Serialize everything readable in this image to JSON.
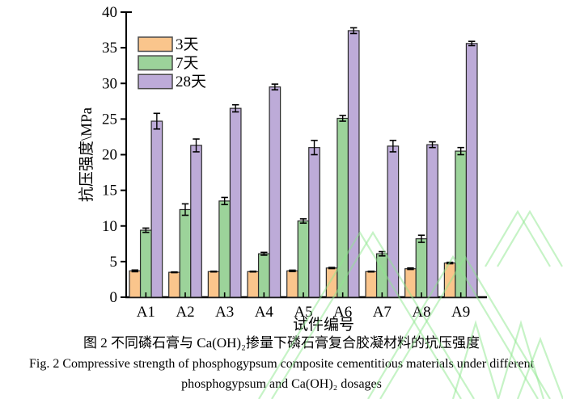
{
  "figure": {
    "caption_zh": "图 2 不同磷石膏与 Ca(OH)₂掺量下磷石膏复合胶凝材料的抗压强度",
    "caption_en_line1": "Fig. 2 Compressive strength of phosphogypsum composite cementitious materials under different",
    "caption_en_line2": "phosphogypsum and Ca(OH)₂ dosages"
  },
  "chart_data": {
    "type": "bar",
    "title": "",
    "xlabel": "试件编号",
    "ylabel": "抗压强度\\MPa",
    "ylim": [
      0,
      40
    ],
    "ytick_step": 5,
    "grid": false,
    "legend_position": "top-left-inside",
    "categories": [
      "A1",
      "A2",
      "A3",
      "A4",
      "A5",
      "A6",
      "A7",
      "A8",
      "A9"
    ],
    "series": [
      {
        "name": "3天",
        "color": "#FAC58C",
        "values": [
          3.7,
          3.5,
          3.6,
          3.6,
          3.7,
          4.1,
          3.6,
          4.0,
          4.8
        ],
        "errors": [
          0.12,
          0.05,
          0.05,
          0.05,
          0.1,
          0.08,
          0.05,
          0.1,
          0.1
        ]
      },
      {
        "name": "7天",
        "color": "#9CD39A",
        "values": [
          9.4,
          12.3,
          13.5,
          6.1,
          10.7,
          25.1,
          6.1,
          8.2,
          20.5
        ],
        "errors": [
          0.3,
          0.8,
          0.5,
          0.2,
          0.3,
          0.4,
          0.3,
          0.5,
          0.5
        ]
      },
      {
        "name": "28天",
        "color": "#BDABD8",
        "values": [
          24.7,
          21.3,
          26.5,
          29.5,
          21.0,
          37.4,
          21.2,
          21.4,
          35.6
        ],
        "errors": [
          1.1,
          0.9,
          0.5,
          0.4,
          1.0,
          0.4,
          0.8,
          0.4,
          0.3
        ]
      }
    ],
    "bar_border_color": "#2b2b2b",
    "error_bar_color": "#000000",
    "axis_color": "#000000"
  },
  "watermark": {
    "color": "#8EE78E"
  }
}
